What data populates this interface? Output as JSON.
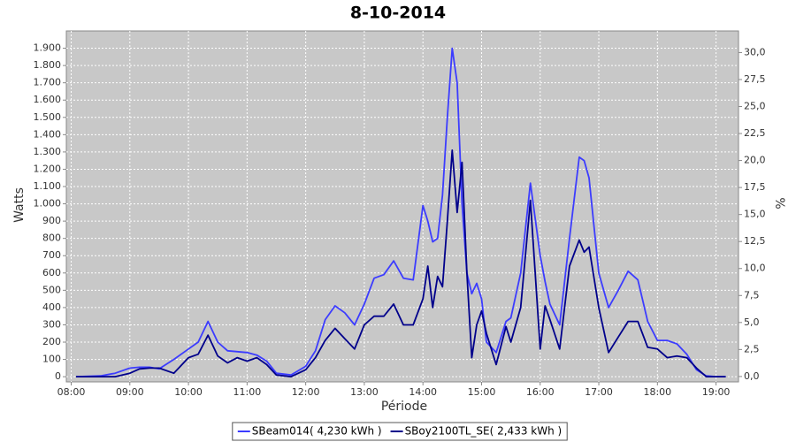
{
  "chart_data": {
    "type": "line",
    "title": "8-10-2014",
    "x_label": "Période",
    "y_label": "Watts",
    "y2_label": "%",
    "x": [
      485,
      510,
      525,
      540,
      550,
      560,
      570,
      585,
      600,
      610,
      620,
      630,
      640,
      650,
      660,
      670,
      680,
      690,
      705,
      720,
      730,
      740,
      750,
      760,
      770,
      780,
      790,
      800,
      810,
      820,
      830,
      840,
      845,
      850,
      855,
      860,
      865,
      870,
      875,
      880,
      885,
      890,
      895,
      900,
      905,
      915,
      925,
      930,
      940,
      950,
      960,
      965,
      970,
      980,
      990,
      1000,
      1005,
      1010,
      1020,
      1030,
      1040,
      1050,
      1060,
      1070,
      1080,
      1090,
      1100,
      1110,
      1120,
      1130,
      1140,
      1150
    ],
    "series": [
      {
        "name": "SBeam014( 4,230 kWh )",
        "color": "#3c3cff",
        "values": [
          0,
          5,
          20,
          50,
          55,
          55,
          45,
          100,
          160,
          200,
          320,
          200,
          150,
          145,
          140,
          125,
          90,
          20,
          10,
          60,
          150,
          330,
          410,
          370,
          300,
          420,
          570,
          590,
          670,
          570,
          560,
          990,
          900,
          780,
          800,
          1050,
          1500,
          1900,
          1700,
          1000,
          600,
          480,
          540,
          450,
          200,
          140,
          320,
          340,
          600,
          1120,
          700,
          550,
          420,
          300,
          800,
          1270,
          1250,
          1150,
          600,
          400,
          500,
          610,
          560,
          320,
          210,
          210,
          190,
          130,
          40,
          5,
          0,
          0
        ]
      },
      {
        "name": "SBoy2100TL_SE( 2,433 kWh )",
        "color": "#00008b",
        "values": [
          0,
          0,
          0,
          20,
          45,
          50,
          50,
          20,
          110,
          130,
          240,
          120,
          80,
          110,
          90,
          110,
          70,
          10,
          0,
          40,
          110,
          210,
          280,
          220,
          160,
          300,
          350,
          350,
          420,
          300,
          300,
          450,
          640,
          400,
          580,
          520,
          900,
          1310,
          950,
          1240,
          600,
          110,
          300,
          380,
          250,
          70,
          290,
          200,
          400,
          1020,
          160,
          410,
          330,
          160,
          640,
          790,
          720,
          750,
          400,
          140,
          230,
          320,
          320,
          170,
          160,
          110,
          120,
          110,
          50,
          0,
          0,
          0
        ]
      }
    ],
    "xlim": [
      475,
      1163
    ],
    "xticks": [
      {
        "value": 480,
        "label": "08:00"
      },
      {
        "value": 540,
        "label": "09:00"
      },
      {
        "value": 600,
        "label": "10:00"
      },
      {
        "value": 660,
        "label": "11:00"
      },
      {
        "value": 720,
        "label": "12:00"
      },
      {
        "value": 780,
        "label": "13:00"
      },
      {
        "value": 840,
        "label": "14:00"
      },
      {
        "value": 900,
        "label": "15:00"
      },
      {
        "value": 960,
        "label": "16:00"
      },
      {
        "value": 1020,
        "label": "17:00"
      },
      {
        "value": 1080,
        "label": "18:00"
      },
      {
        "value": 1140,
        "label": "19:00"
      }
    ],
    "ylim": [
      -30,
      2000
    ],
    "yticks": [
      0,
      100,
      200,
      300,
      400,
      500,
      600,
      700,
      800,
      900,
      {
        "value": 1000,
        "label": "1.000"
      },
      {
        "value": 1100,
        "label": "1.100"
      },
      {
        "value": 1200,
        "label": "1.200"
      },
      {
        "value": 1300,
        "label": "1.300"
      },
      {
        "value": 1400,
        "label": "1.400"
      },
      {
        "value": 1500,
        "label": "1.500"
      },
      {
        "value": 1600,
        "label": "1.600"
      },
      {
        "value": 1700,
        "label": "1.700"
      },
      {
        "value": 1800,
        "label": "1.800"
      },
      {
        "value": 1900,
        "label": "1.900"
      }
    ],
    "y2lim": [
      -0.5,
      32
    ],
    "y2ticks": [
      {
        "value": 0,
        "label": "0,0"
      },
      {
        "value": 2.5,
        "label": "2,5"
      },
      {
        "value": 5,
        "label": "5,0"
      },
      {
        "value": 7.5,
        "label": "7,5"
      },
      {
        "value": 10,
        "label": "10,0"
      },
      {
        "value": 12.5,
        "label": "12,5"
      },
      {
        "value": 15,
        "label": "15,0"
      },
      {
        "value": 17.5,
        "label": "17,5"
      },
      {
        "value": 20,
        "label": "20,0"
      },
      {
        "value": 22.5,
        "label": "22,5"
      },
      {
        "value": 25,
        "label": "25,0"
      },
      {
        "value": 27.5,
        "label": "27,5"
      },
      {
        "value": 30,
        "label": "30,0"
      }
    ],
    "grid": true,
    "legend": "bottom",
    "plot_background": "#c8c8c8"
  }
}
